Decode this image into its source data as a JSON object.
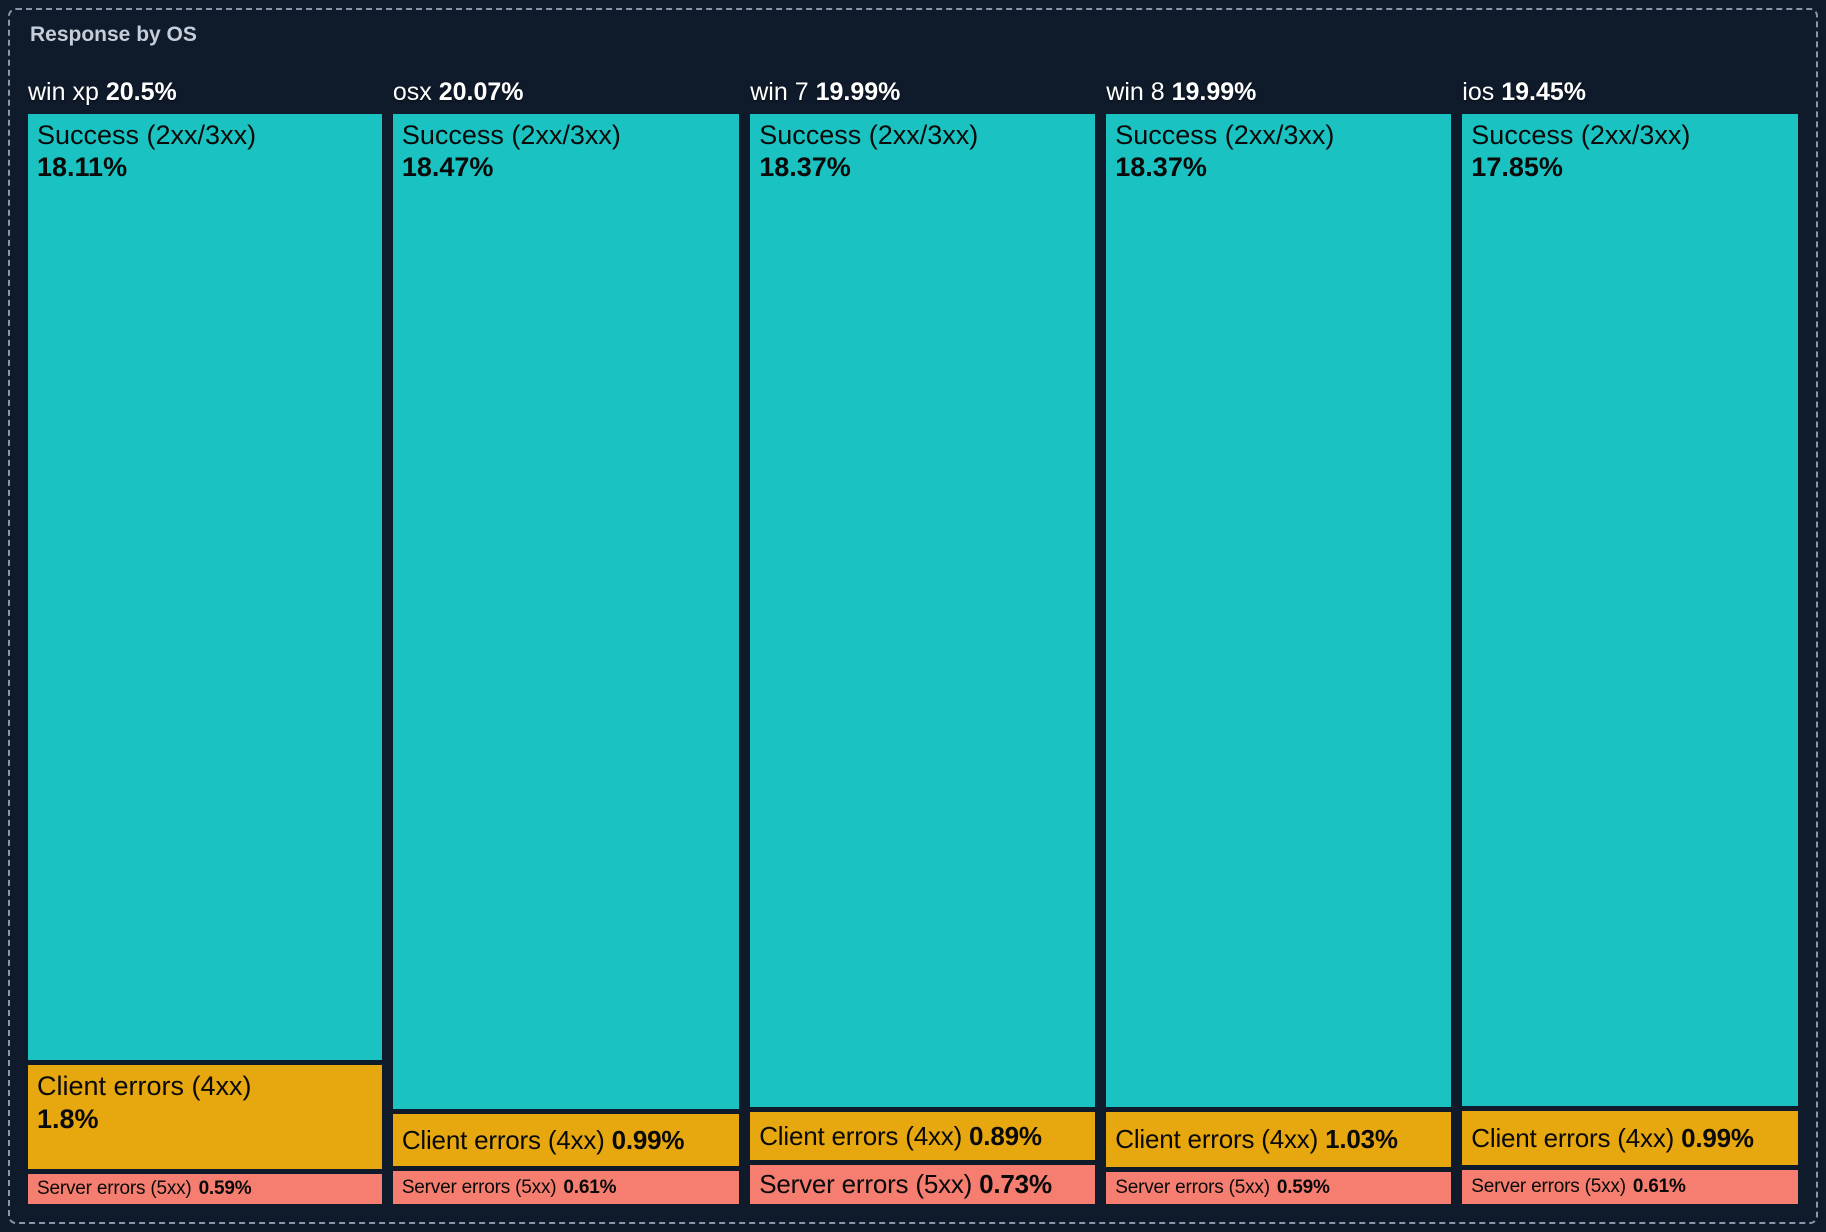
{
  "panel": {
    "title": "Response by OS"
  },
  "theme": {
    "background": "#0f1a2a",
    "border_color": "#8a97ab",
    "title_color": "#c5cdd9",
    "header_color": "#ffffff",
    "label_color": "#0a0a0a"
  },
  "chart_data": {
    "type": "treemap",
    "title": "Response by OS",
    "orientation": "columns",
    "value_unit": "%",
    "colors": {
      "success": "#1ac3c1",
      "client_errors": "#e7a70f",
      "server_errors": "#f57e70"
    },
    "groups": [
      {
        "name": "win xp",
        "total_value": 20.5,
        "total_label": "20.5%",
        "segments": [
          {
            "name": "Success (2xx/3xx)",
            "category": "success",
            "value": 18.11,
            "label": "18.11%"
          },
          {
            "name": "Client errors (4xx)",
            "category": "client_errors",
            "value": 1.8,
            "label": "1.8%"
          },
          {
            "name": "Server errors (5xx)",
            "category": "server_errors",
            "value": 0.59,
            "label": "0.59%"
          }
        ]
      },
      {
        "name": "osx",
        "total_value": 20.07,
        "total_label": "20.07%",
        "segments": [
          {
            "name": "Success (2xx/3xx)",
            "category": "success",
            "value": 18.47,
            "label": "18.47%"
          },
          {
            "name": "Client errors (4xx)",
            "category": "client_errors",
            "value": 0.99,
            "label": "0.99%"
          },
          {
            "name": "Server errors (5xx)",
            "category": "server_errors",
            "value": 0.61,
            "label": "0.61%"
          }
        ]
      },
      {
        "name": "win 7",
        "total_value": 19.99,
        "total_label": "19.99%",
        "segments": [
          {
            "name": "Success (2xx/3xx)",
            "category": "success",
            "value": 18.37,
            "label": "18.37%"
          },
          {
            "name": "Client errors (4xx)",
            "category": "client_errors",
            "value": 0.89,
            "label": "0.89%"
          },
          {
            "name": "Server errors (5xx)",
            "category": "server_errors",
            "value": 0.73,
            "label": "0.73%"
          }
        ]
      },
      {
        "name": "win 8",
        "total_value": 19.99,
        "total_label": "19.99%",
        "segments": [
          {
            "name": "Success (2xx/3xx)",
            "category": "success",
            "value": 18.37,
            "label": "18.37%"
          },
          {
            "name": "Client errors (4xx)",
            "category": "client_errors",
            "value": 1.03,
            "label": "1.03%"
          },
          {
            "name": "Server errors (5xx)",
            "category": "server_errors",
            "value": 0.59,
            "label": "0.59%"
          }
        ]
      },
      {
        "name": "ios",
        "total_value": 19.45,
        "total_label": "19.45%",
        "segments": [
          {
            "name": "Success (2xx/3xx)",
            "category": "success",
            "value": 17.85,
            "label": "17.85%"
          },
          {
            "name": "Client errors (4xx)",
            "category": "client_errors",
            "value": 0.99,
            "label": "0.99%"
          },
          {
            "name": "Server errors (5xx)",
            "category": "server_errors",
            "value": 0.61,
            "label": "0.61%"
          }
        ]
      }
    ]
  }
}
